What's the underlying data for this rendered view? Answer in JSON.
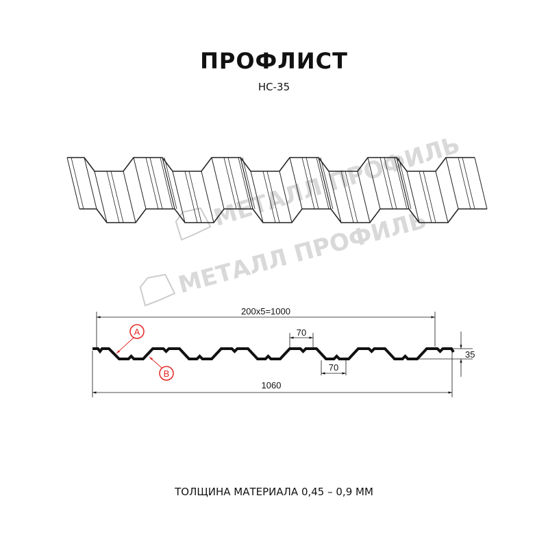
{
  "title": "ПРОФЛИСТ",
  "subtitle": "НС-35",
  "watermark": "МЕТАЛЛ ПРОФИЛЬ",
  "dimensions": {
    "pitch_total": "200x5=1000",
    "full_width": "1060",
    "crest_width": "70",
    "valley_width": "70",
    "height": "35"
  },
  "markers": {
    "a": "A",
    "b": "B",
    "color": "#e52421"
  },
  "thickness": "ТОЛЩИНА МАТЕРИАЛА 0,45 – 0,9 ММ"
}
